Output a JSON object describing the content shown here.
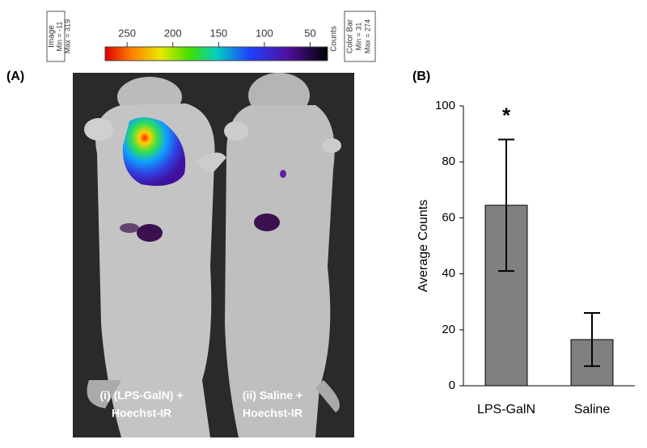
{
  "panel_a": {
    "label": "(A)",
    "colorbar": {
      "image_title": "Image",
      "image_min": "Min = -11",
      "image_max": "Max = 319",
      "bar_title": "Color Bar",
      "bar_min": "Min = 31",
      "bar_max": "Max = 274",
      "unit": "Counts",
      "clim": [
        274,
        31
      ],
      "ticks": [
        250,
        200,
        150,
        100,
        50
      ]
    },
    "mouse_labels": [
      [
        "(i) (LPS-GalN) +",
        "Hoechst-IR"
      ],
      [
        "(ii) Saline +",
        "Hoechst-IR"
      ]
    ]
  },
  "chart_data": {
    "type": "bar",
    "panel_label": "(B)",
    "ylabel": "Average Counts",
    "categories": [
      "LPS-GalN",
      "Saline"
    ],
    "values": [
      64.5,
      16.5
    ],
    "errors": [
      23.5,
      9.5
    ],
    "color": "#808080",
    "annotation": "*",
    "ylim": [
      0,
      100
    ],
    "yticks": [
      0,
      20,
      40,
      60,
      80,
      100
    ]
  }
}
